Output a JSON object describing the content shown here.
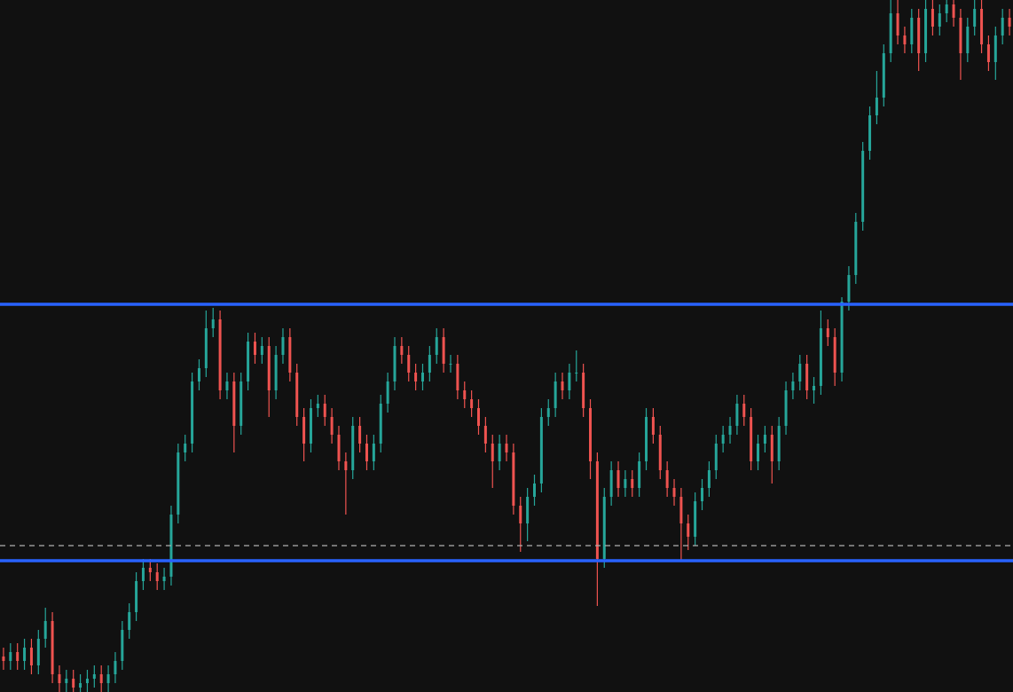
{
  "chart_data": {
    "type": "candlestick",
    "ylim": [
      0,
      780
    ],
    "up_color": "#26a69a",
    "down_color": "#ef5350",
    "background": "#111111",
    "levels": [
      {
        "value": 437,
        "color": "#2962ff",
        "style": "solid"
      },
      {
        "value": 148,
        "color": "#2962ff",
        "style": "solid"
      },
      {
        "value": 165,
        "color": "#b0b0b0",
        "style": "dashed"
      }
    ],
    "open": [
      40,
      35,
      45,
      35,
      50,
      30,
      60,
      80,
      20,
      10,
      15,
      5,
      10,
      15,
      20,
      10,
      20,
      35,
      70,
      90,
      125,
      140,
      135,
      125,
      130,
      200,
      270,
      280,
      350,
      365,
      410,
      420,
      340,
      350,
      300,
      350,
      395,
      380,
      390,
      340,
      380,
      400,
      360,
      310,
      280,
      320,
      325,
      310,
      290,
      260,
      250,
      300,
      280,
      260,
      280,
      325,
      350,
      390,
      380,
      360,
      350,
      360,
      380,
      400,
      370,
      370,
      340,
      330,
      320,
      300,
      280,
      260,
      280,
      270,
      210,
      190,
      220,
      235,
      310,
      320,
      350,
      340,
      360,
      360,
      320,
      260,
      150,
      220,
      250,
      230,
      240,
      230,
      260,
      310,
      290,
      250,
      230,
      220,
      190,
      175,
      215,
      230,
      250,
      280,
      290,
      300,
      325,
      310,
      260,
      280,
      290,
      260,
      300,
      340,
      350,
      370,
      340,
      345,
      410,
      400,
      360,
      440,
      470,
      530,
      610,
      650,
      670,
      720,
      765,
      740,
      730,
      760,
      720,
      770,
      750,
      765,
      775,
      760,
      720,
      750,
      770,
      730,
      710,
      740,
      760
    ],
    "high": [
      50,
      55,
      55,
      60,
      60,
      70,
      95,
      90,
      30,
      25,
      25,
      20,
      25,
      30,
      30,
      30,
      45,
      80,
      100,
      135,
      150,
      150,
      145,
      140,
      210,
      280,
      290,
      360,
      375,
      430,
      433,
      430,
      360,
      360,
      360,
      405,
      405,
      400,
      400,
      390,
      410,
      410,
      370,
      320,
      330,
      335,
      335,
      320,
      300,
      270,
      310,
      310,
      290,
      290,
      335,
      360,
      400,
      400,
      390,
      370,
      370,
      390,
      410,
      410,
      380,
      380,
      350,
      340,
      330,
      310,
      290,
      290,
      290,
      280,
      220,
      230,
      245,
      320,
      330,
      360,
      360,
      370,
      385,
      370,
      330,
      270,
      230,
      260,
      260,
      250,
      250,
      270,
      320,
      320,
      300,
      260,
      240,
      230,
      200,
      225,
      240,
      260,
      290,
      300,
      310,
      335,
      335,
      320,
      290,
      300,
      300,
      310,
      350,
      360,
      380,
      380,
      355,
      430,
      420,
      410,
      445,
      480,
      540,
      620,
      660,
      700,
      730,
      780,
      780,
      750,
      770,
      770,
      780,
      780,
      775,
      780,
      780,
      770,
      760,
      780,
      780,
      740,
      750,
      770,
      770
    ],
    "low": [
      25,
      25,
      25,
      25,
      20,
      20,
      50,
      10,
      0,
      0,
      0,
      0,
      0,
      5,
      0,
      0,
      10,
      25,
      60,
      80,
      115,
      125,
      115,
      115,
      120,
      190,
      260,
      270,
      340,
      355,
      400,
      330,
      330,
      270,
      290,
      340,
      370,
      370,
      310,
      330,
      370,
      350,
      300,
      260,
      270,
      310,
      300,
      280,
      250,
      200,
      240,
      270,
      250,
      250,
      270,
      315,
      340,
      370,
      350,
      340,
      340,
      350,
      370,
      360,
      360,
      330,
      320,
      310,
      290,
      270,
      230,
      250,
      260,
      200,
      158,
      170,
      210,
      225,
      300,
      310,
      330,
      330,
      350,
      310,
      240,
      97,
      140,
      210,
      220,
      220,
      220,
      220,
      250,
      280,
      240,
      220,
      210,
      148,
      160,
      165,
      205,
      220,
      240,
      270,
      280,
      290,
      300,
      250,
      250,
      270,
      235,
      250,
      290,
      330,
      340,
      330,
      325,
      335,
      390,
      345,
      350,
      430,
      460,
      520,
      600,
      640,
      660,
      710,
      730,
      720,
      720,
      700,
      710,
      740,
      740,
      755,
      750,
      690,
      710,
      740,
      720,
      700,
      690,
      730,
      740
    ],
    "close": [
      35,
      45,
      35,
      50,
      30,
      60,
      80,
      20,
      10,
      15,
      5,
      10,
      15,
      20,
      10,
      20,
      35,
      70,
      90,
      125,
      140,
      135,
      125,
      130,
      200,
      270,
      280,
      350,
      365,
      410,
      420,
      340,
      350,
      300,
      350,
      395,
      380,
      390,
      340,
      380,
      400,
      360,
      310,
      280,
      320,
      325,
      310,
      290,
      260,
      250,
      300,
      280,
      260,
      280,
      325,
      350,
      390,
      380,
      360,
      350,
      360,
      380,
      400,
      370,
      370,
      340,
      330,
      320,
      300,
      280,
      260,
      280,
      270,
      210,
      190,
      220,
      235,
      310,
      320,
      350,
      340,
      360,
      360,
      320,
      260,
      150,
      220,
      250,
      230,
      240,
      230,
      260,
      310,
      290,
      250,
      230,
      220,
      190,
      175,
      215,
      230,
      250,
      280,
      290,
      300,
      325,
      310,
      260,
      280,
      290,
      260,
      300,
      340,
      350,
      370,
      340,
      345,
      410,
      400,
      360,
      440,
      470,
      530,
      610,
      650,
      670,
      720,
      765,
      740,
      730,
      760,
      720,
      770,
      750,
      765,
      775,
      760,
      720,
      750,
      770,
      730,
      710,
      740,
      760,
      750
    ]
  }
}
